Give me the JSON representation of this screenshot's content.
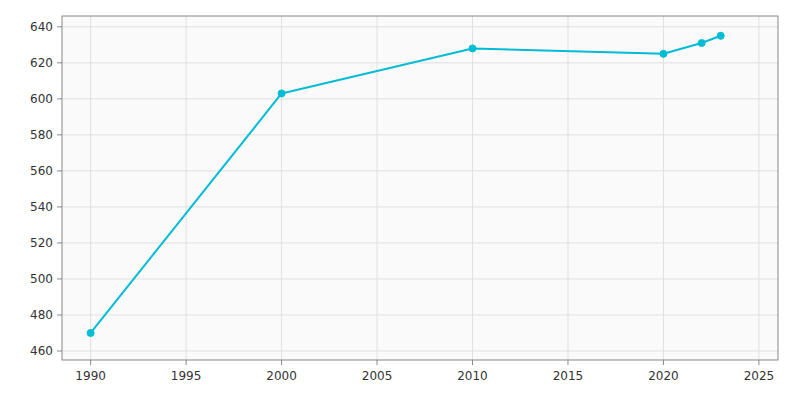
{
  "chart_data": {
    "type": "line",
    "x": [
      1990,
      2000,
      2010,
      2020,
      2022,
      2023
    ],
    "values": [
      470,
      603,
      628,
      625,
      631,
      635
    ],
    "color": "#00bcd4",
    "marker": "circle",
    "xlim": [
      1988.5,
      2026
    ],
    "ylim": [
      455,
      646
    ],
    "xticks": [
      1990,
      1995,
      2000,
      2005,
      2010,
      2015,
      2020,
      2025
    ],
    "yticks": [
      460,
      480,
      500,
      520,
      540,
      560,
      580,
      600,
      620,
      640
    ],
    "grid": true
  }
}
